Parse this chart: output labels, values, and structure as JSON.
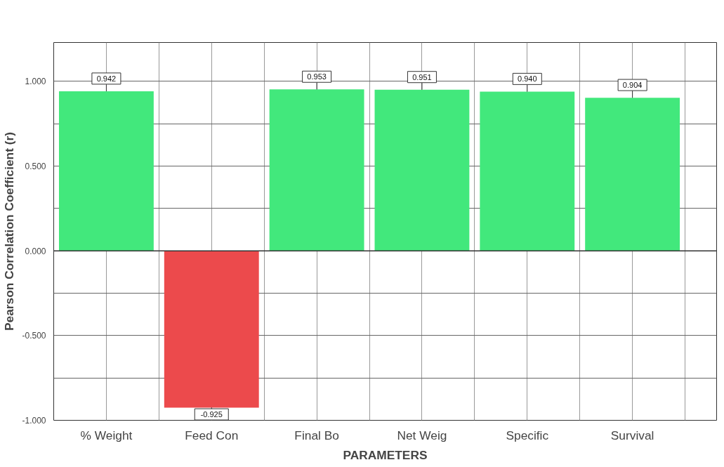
{
  "chart_data": {
    "type": "bar",
    "xlabel": "PARAMETERS",
    "ylabel": "Pearson Correlation Coefficient (r)",
    "categories": [
      "% Weight",
      "Feed Con",
      "Final Bo",
      "Net Weig",
      "Specific",
      "Survival"
    ],
    "values": [
      0.942,
      -0.925,
      0.953,
      0.951,
      0.94,
      0.904
    ],
    "colors": [
      "#42e87c",
      "#ec4a4c",
      "#42e87c",
      "#42e87c",
      "#42e87c",
      "#42e87c"
    ],
    "value_labels": [
      "0.942",
      "-0.925",
      "0.953",
      "0.951",
      "0.940",
      "0.904"
    ],
    "ylim": [
      -1.0,
      1.23
    ],
    "yticks": [
      {
        "value": -1.0,
        "label": "-1.000"
      },
      {
        "value": -0.75,
        "label": null
      },
      {
        "value": -0.5,
        "label": "-0.500"
      },
      {
        "value": -0.25,
        "label": null
      },
      {
        "value": 0.0,
        "label": "0.000"
      },
      {
        "value": 0.25,
        "label": null
      },
      {
        "value": 0.5,
        "label": "0.500"
      },
      {
        "value": 0.75,
        "label": null
      },
      {
        "value": 1.0,
        "label": "1.000"
      }
    ],
    "grid": true
  }
}
